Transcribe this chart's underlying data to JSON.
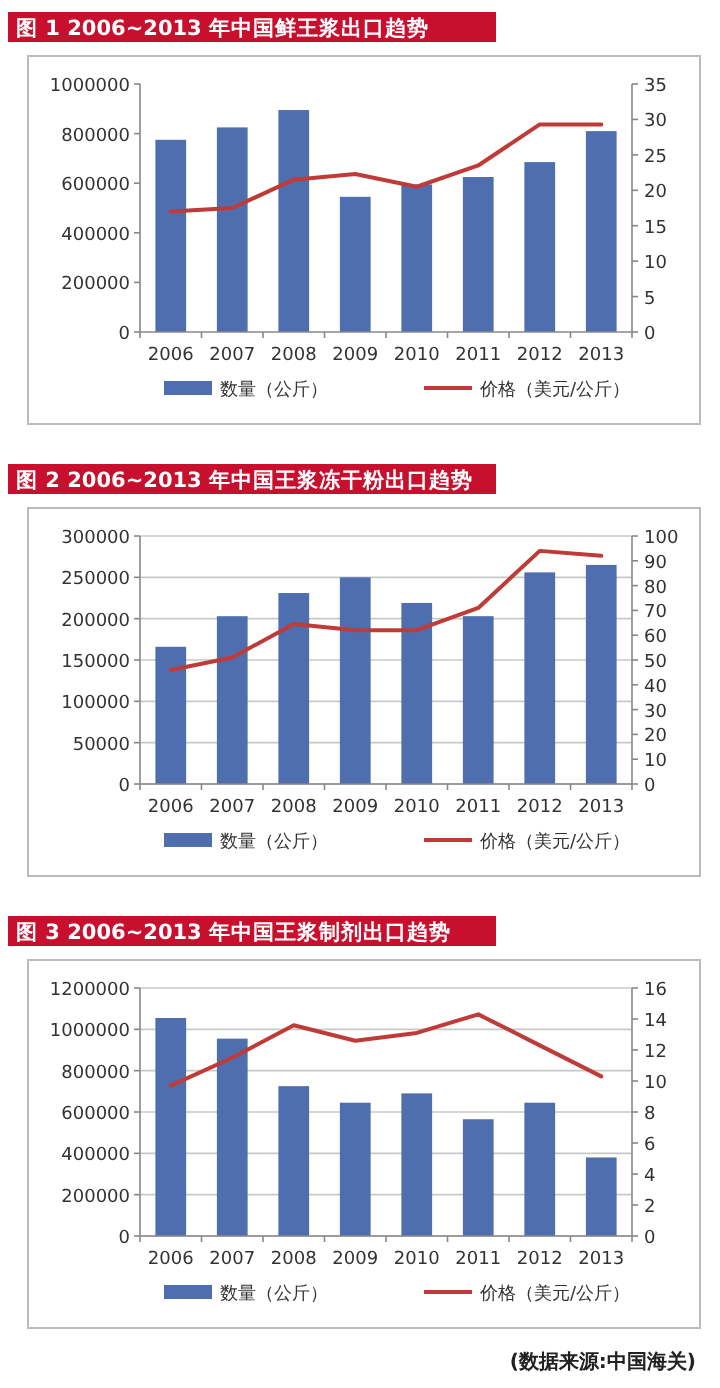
{
  "chart_data": [
    {
      "type": "bar",
      "title": "图 1  2006~2013 年中国鲜王浆出口趋势",
      "categories": [
        "2006",
        "2007",
        "2008",
        "2009",
        "2010",
        "2011",
        "2012",
        "2013"
      ],
      "series": [
        {
          "name": "数量（公斤）",
          "color": "#4f6eb0",
          "values": [
            775000,
            825000,
            895000,
            545000,
            595000,
            625000,
            685000,
            810000
          ]
        },
        {
          "name": "价格（美元/公斤）",
          "type": "line",
          "axis": "y2",
          "color": "#bf3b38",
          "values": [
            17,
            17.5,
            21.5,
            22.3,
            20.5,
            23.5,
            29.3,
            29.3
          ]
        }
      ],
      "ylim": [
        0,
        1000000
      ],
      "yticks": [
        0,
        200000,
        400000,
        600000,
        800000,
        1000000
      ],
      "y2lim": [
        0,
        35
      ],
      "y2ticks": [
        0,
        5,
        10,
        15,
        20,
        25,
        30,
        35
      ],
      "grid": false,
      "legend": "bottom"
    },
    {
      "type": "bar",
      "title": "图 2  2006~2013 年中国王浆冻干粉出口趋势",
      "categories": [
        "2006",
        "2007",
        "2008",
        "2009",
        "2010",
        "2011",
        "2012",
        "2013"
      ],
      "series": [
        {
          "name": "数量（公斤）",
          "color": "#4f6eb0",
          "values": [
            166000,
            203000,
            231000,
            250000,
            219000,
            203000,
            256000,
            265000
          ]
        },
        {
          "name": "价格（美元/公斤）",
          "type": "line",
          "axis": "y2",
          "color": "#bf3b38",
          "values": [
            46,
            51,
            64.5,
            62,
            62,
            71,
            94,
            92
          ]
        }
      ],
      "ylim": [
        0,
        300000
      ],
      "yticks": [
        0,
        50000,
        100000,
        150000,
        200000,
        250000,
        300000
      ],
      "y2lim": [
        0,
        100
      ],
      "y2ticks": [
        0,
        10,
        20,
        30,
        40,
        50,
        60,
        70,
        80,
        90,
        100
      ],
      "grid": "y",
      "legend": "bottom"
    },
    {
      "type": "bar",
      "title": "图 3  2006~2013 年中国王浆制剂出口趋势",
      "categories": [
        "2006",
        "2007",
        "2008",
        "2009",
        "2010",
        "2011",
        "2012",
        "2013"
      ],
      "series": [
        {
          "name": "数量（公斤）",
          "color": "#4f6eb0",
          "values": [
            1055000,
            955000,
            725000,
            645000,
            690000,
            565000,
            645000,
            380000
          ]
        },
        {
          "name": "价格（美元/公斤）",
          "type": "line",
          "axis": "y2",
          "color": "#bf3b38",
          "values": [
            9.7,
            11.5,
            13.6,
            12.6,
            13.1,
            14.3,
            12.3,
            10.3
          ]
        }
      ],
      "ylim": [
        0,
        1200000
      ],
      "yticks": [
        0,
        200000,
        400000,
        600000,
        800000,
        1000000,
        1200000
      ],
      "y2lim": [
        0,
        16
      ],
      "y2ticks": [
        0,
        2,
        4,
        6,
        8,
        10,
        12,
        14,
        16
      ],
      "grid": "y",
      "legend": "bottom",
      "annotations": [
        "(数据来源:中国海关)"
      ]
    }
  ]
}
